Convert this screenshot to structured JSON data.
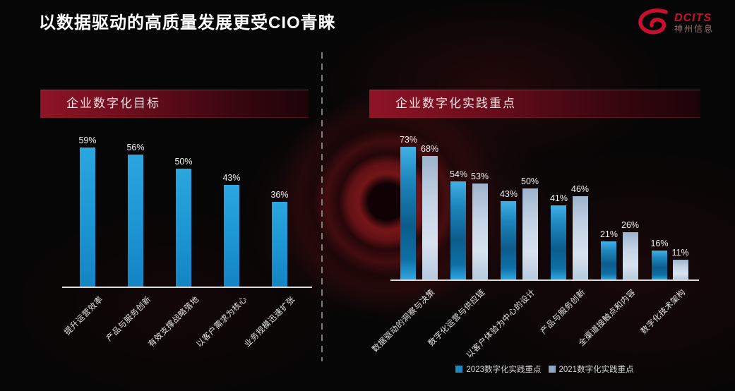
{
  "slide": {
    "title": "以数据驱动的高质量发展更受CIO青睐",
    "logo": {
      "brand": "DCITS",
      "company": "神州信息"
    }
  },
  "panels": {
    "left": {
      "header": "企业数字化目标"
    },
    "right": {
      "header": "企业数字化实践重点"
    }
  },
  "chart_data": [
    {
      "type": "bar",
      "title": "企业数字化目标",
      "unit": "%",
      "categories": [
        "提升运营效率",
        "产品与服务创新",
        "有效支撑战略落地",
        "以客户需求为核心",
        "业务规模迅速扩张"
      ],
      "values": [
        59,
        56,
        50,
        43,
        36
      ],
      "ylim": [
        0,
        63
      ],
      "grid": false,
      "bar_color": "#1E9BD6",
      "legend_position": "none"
    },
    {
      "type": "bar",
      "title": "企业数字化实践重点",
      "unit": "%",
      "categories": [
        "数据驱动的洞察与决策",
        "数字化运营与供应链",
        "以客户体验为中心的设计",
        "产品与服务创新",
        "全渠道接触点和内容",
        "数字化技术架构"
      ],
      "series": [
        {
          "name": "2023数字化实践重点",
          "values": [
            73,
            54,
            43,
            41,
            21,
            16
          ],
          "color": "#2EA8E0",
          "legend_color": "#1F86BE"
        },
        {
          "name": "2021数字化实践重点",
          "values": [
            68,
            53,
            50,
            46,
            26,
            11
          ],
          "color": "#BCCEE3",
          "legend_color": "#8FA6C0"
        }
      ],
      "ylim": [
        0,
        78
      ],
      "grid": false,
      "legend_position": "bottom"
    }
  ],
  "colors": {
    "background": "#060606",
    "accent_red": "#8E1426",
    "brand_red": "#C8102E",
    "header_text": "#F5E2E4",
    "bar_blue": "#1E9BD6",
    "bar_gray_blue": "#BCCEE3",
    "axis_line": "#DCDCDC"
  }
}
